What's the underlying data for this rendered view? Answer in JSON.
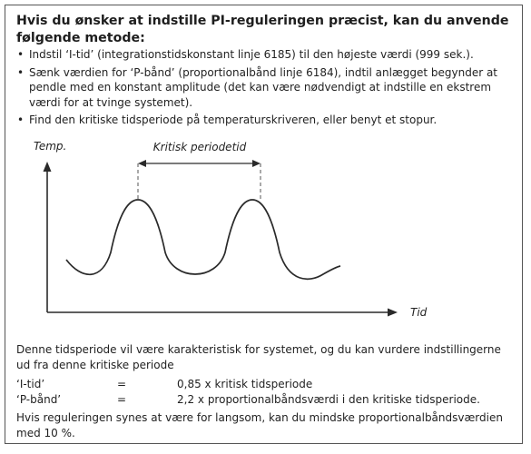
{
  "heading": "Hvis du ønsker at indstille PI-reguleringen præcist, kan du anvende følgende metode:",
  "bullets": [
    "Indstil ‘I-tid’ (integrationstidskonstant linje 6185) til den højeste værdi (999 sek.).",
    "Sænk værdien for ‘P-bånd’ (proportionalbånd linje 6184), indtil anlægget begynder at pendle med en konstant amplitude (det kan være nødvendigt at indstille en ekstrem værdi for at tvinge systemet).",
    "Find den kritiske tidsperiode på temperaturskriveren, eller benyt et stopur."
  ],
  "bullet_glyph": "•",
  "diagram": {
    "y_label": "Temp.",
    "x_label": "Tid",
    "period_label": "Kritisk periodetid"
  },
  "paragraph_1": "Denne tidsperiode vil være karakteristisk for systemet, og du kan vurdere indstillingerne ud fra denne kritiske periode",
  "formulas": [
    {
      "label": "‘I-tid’",
      "equals": "=",
      "value": "0,85 x kritisk tidsperiode"
    },
    {
      "label": "‘P-bånd’",
      "equals": "=",
      "value": "2,2 x proportionalbåndsværdi i den kritiske tidsperiode."
    }
  ],
  "paragraph_2": "Hvis reguleringen synes at være for langsom, kan du mindske proportionalbåndsværdien med 10 %.",
  "colors": {
    "line": "#2a2a2a",
    "dashed": "#555555",
    "border": "#555555"
  }
}
